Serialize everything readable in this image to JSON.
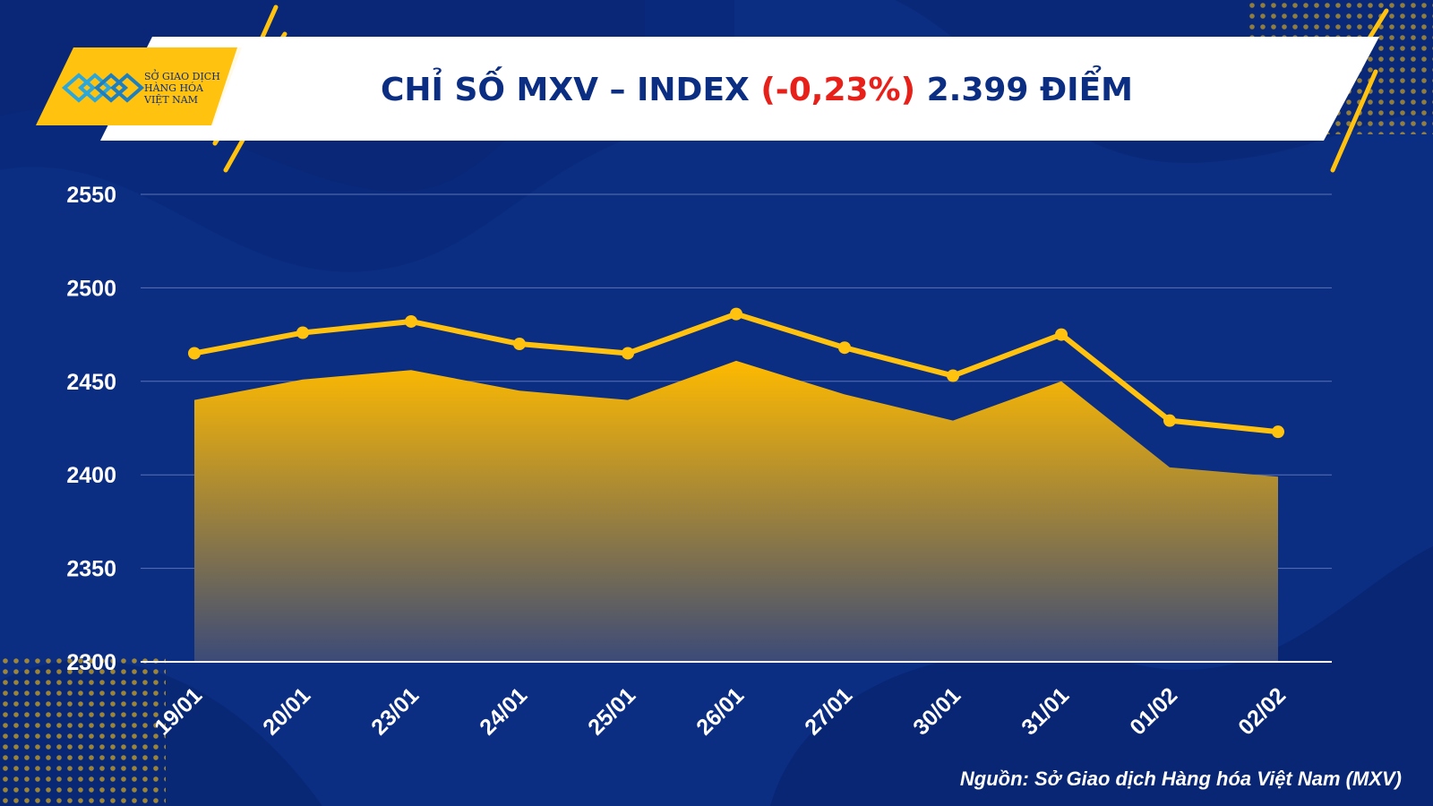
{
  "brand": {
    "logo_lines": [
      "SỞ GIAO DỊCH",
      "HÀNG HÓA",
      "VIỆT NAM"
    ],
    "logo_icon": "mxv-logo-icon"
  },
  "header": {
    "title_prefix": "CHỈ SỐ MXV – INDEX ",
    "title_change": "(-0,23%)",
    "title_suffix": " 2.399 ĐIỂM"
  },
  "colors": {
    "background": "#0b2d82",
    "accent": "#ffc20e",
    "negative": "#e8201a",
    "title_text": "#0b2d82",
    "header_band": "#ffffff",
    "axis_text": "#ffffff",
    "gridline": "#5b72b6"
  },
  "source": "Nguồn: Sở Giao dịch Hàng hóa Việt Nam (MXV)",
  "chart_data": {
    "type": "area",
    "title": "CHỈ SỐ MXV – INDEX (-0,23%) 2.399 ĐIỂM",
    "categories": [
      "19/01",
      "20/01",
      "23/01",
      "24/01",
      "25/01",
      "26/01",
      "27/01",
      "30/01",
      "31/01",
      "01/02",
      "02/02"
    ],
    "series": [
      {
        "style": "area",
        "values": [
          2440,
          2451,
          2456,
          2445,
          2440,
          2461,
          2443,
          2429,
          2450,
          2404,
          2399
        ]
      },
      {
        "style": "line-with-markers",
        "values": [
          2465,
          2476,
          2482,
          2470,
          2465,
          2486,
          2468,
          2453,
          2475,
          2429,
          2423
        ]
      }
    ],
    "xlabel": "",
    "ylabel": "",
    "ylim": [
      2300,
      2550
    ],
    "yticks": [
      2300,
      2350,
      2400,
      2450,
      2500,
      2550
    ],
    "grid": true,
    "legend": "none"
  }
}
